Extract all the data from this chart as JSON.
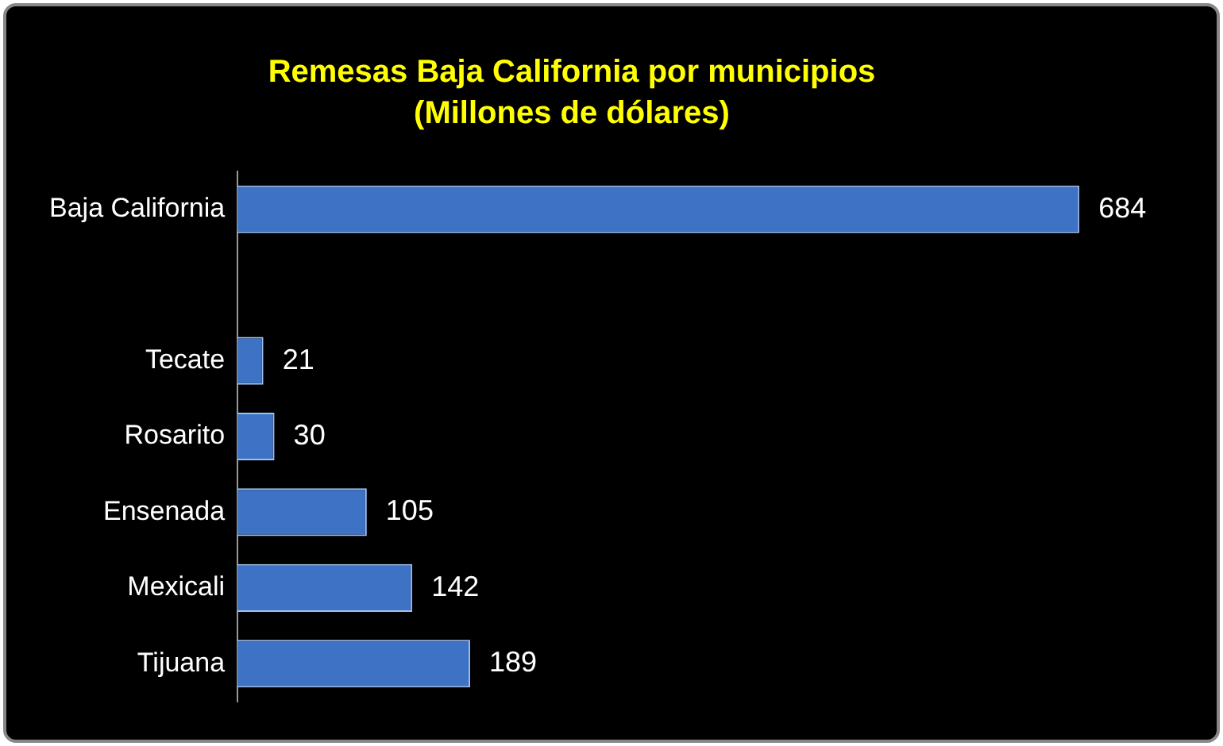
{
  "chart_data": {
    "type": "bar",
    "orientation": "horizontal",
    "title": "Remesas Baja California por municipios",
    "subtitle": "(Millones de dólares)",
    "categories": [
      "Baja California",
      null,
      "Tecate",
      "Rosarito",
      "Ensenada",
      "Mexicali",
      "Tijuana"
    ],
    "values": [
      684,
      null,
      21,
      30,
      105,
      142,
      189
    ],
    "color": "#3d72c4",
    "data_labels": true,
    "legend": false
  }
}
